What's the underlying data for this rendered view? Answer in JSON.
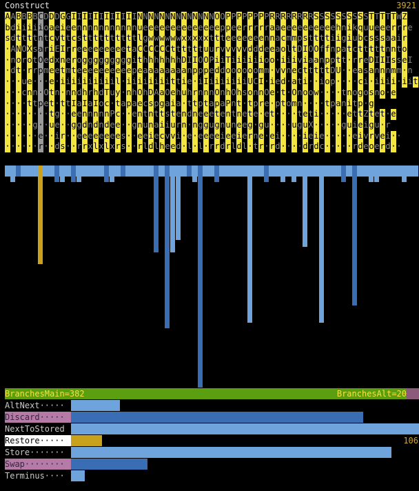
{
  "title": "Construct",
  "total": "3921",
  "grid_rows": [
    "AABBBBCDDDGGIIIIIIIIIIIINNNNNNNNNNNNNNOOPPPPPPPPRRRRRRRRSSSSSSSSSSTTTTTWZ",
    "bdiiiiioaeieennnnnnnnnnnueeeeeeeeeeeeeeppeerrrrraaeeeeeeeeeehnikquueeerrre",
    "sdttttntcvttcsttttttttttlgwwwwwwxxxxxttteeeeeeennacmmpsttttiigiubcsssaair",
    "·ANOXsariEIrreeeeeeeeetaCCCCCCttttttuurvvvvvdddeeaoltDIOOffnpatctttttnnto",
    "·norotOedxnerogggggggggithhhhhhhDIIOOPiiTiiiiiioo·iiiviaanpptt·rreDIIIsseI",
    "·dt·rrpmeetmteeeeeeeeeepeaaaaaaaanpppeddoooooomm·vvnectttttDU··easannnmm·n",
    "···ue···e·iiiiiiiiiil·iiiiiiiittie·iIiiiiiiiUCI·ied·ati··iop····ci·iiii·iit",
    "···cnn·Otn·nndhrhdTuy·nhOhDAaOehuhrnnnOnhOhsonnOe·t·Onoow····tnogosno·e",
    "····ttpet·ttIaIaIoc·tapaecspgaia·ttptapaPnt·tpre·ptomn····tpanitp·g",
    "········tg··eennnnnPc··entnttstendneeetentnete·et····teti·····ettZtet·e",
    "·····g··ue··ggdndndee··gnunaiiurn·nggugnuneeg·gu····uguX·····guieigu·r",
    "······e··ir··eeeeeeees··eeiecvvi·e·eeeeieeierne·ei····ieie·····eivrvei··",
    "······r··ds··rrxlxlxrs··rldlheed·l·l·rrdrldl·tr·rd····drdc·····rdeoerd··"
  ],
  "selected_column": 6,
  "column_bars": [
    {
      "v": 16,
      "c": "light"
    },
    {
      "v": 24,
      "c": "light"
    },
    {
      "v": 16,
      "c": "dark"
    },
    {
      "v": 16,
      "c": "light"
    },
    {
      "v": 16,
      "c": "light"
    },
    {
      "v": 16,
      "c": "light"
    },
    {
      "v": 143,
      "c": "gold"
    },
    {
      "v": 16,
      "c": "light"
    },
    {
      "v": 16,
      "c": "light"
    },
    {
      "v": 24,
      "c": "dark"
    },
    {
      "v": 24,
      "c": "light"
    },
    {
      "v": 16,
      "c": "light"
    },
    {
      "v": 24,
      "c": "dark"
    },
    {
      "v": 24,
      "c": "light"
    },
    {
      "v": 16,
      "c": "light"
    },
    {
      "v": 16,
      "c": "light"
    },
    {
      "v": 16,
      "c": "light"
    },
    {
      "v": 16,
      "c": "light"
    },
    {
      "v": 24,
      "c": "dark"
    },
    {
      "v": 24,
      "c": "light"
    },
    {
      "v": 16,
      "c": "light"
    },
    {
      "v": 16,
      "c": "dark"
    },
    {
      "v": 16,
      "c": "light"
    },
    {
      "v": 16,
      "c": "light"
    },
    {
      "v": 16,
      "c": "light"
    },
    {
      "v": 16,
      "c": "light"
    },
    {
      "v": 16,
      "c": "light"
    },
    {
      "v": 126,
      "c": "dark"
    },
    {
      "v": 16,
      "c": "light"
    },
    {
      "v": 236,
      "c": "dark"
    },
    {
      "v": 126,
      "c": "light"
    },
    {
      "v": 108,
      "c": "light"
    },
    {
      "v": 16,
      "c": "light"
    },
    {
      "v": 16,
      "c": "dark"
    },
    {
      "v": 24,
      "c": "light"
    },
    {
      "v": 322,
      "c": "dark"
    },
    {
      "v": 16,
      "c": "light"
    },
    {
      "v": 16,
      "c": "light"
    },
    {
      "v": 24,
      "c": "dark"
    },
    {
      "v": 16,
      "c": "light"
    },
    {
      "v": 16,
      "c": "light"
    },
    {
      "v": 16,
      "c": "light"
    },
    {
      "v": 16,
      "c": "light"
    },
    {
      "v": 16,
      "c": "light"
    },
    {
      "v": 228,
      "c": "light"
    },
    {
      "v": 16,
      "c": "light"
    },
    {
      "v": 16,
      "c": "light"
    },
    {
      "v": 24,
      "c": "dark"
    },
    {
      "v": 16,
      "c": "light"
    },
    {
      "v": 16,
      "c": "light"
    },
    {
      "v": 24,
      "c": "light"
    },
    {
      "v": 16,
      "c": "light"
    },
    {
      "v": 24,
      "c": "light"
    },
    {
      "v": 16,
      "c": "light"
    },
    {
      "v": 118,
      "c": "light"
    },
    {
      "v": 16,
      "c": "light"
    },
    {
      "v": 16,
      "c": "light"
    },
    {
      "v": 228,
      "c": "light"
    },
    {
      "v": 16,
      "c": "light"
    },
    {
      "v": 16,
      "c": "light"
    },
    {
      "v": 16,
      "c": "light"
    },
    {
      "v": 24,
      "c": "dark"
    },
    {
      "v": 16,
      "c": "light"
    },
    {
      "v": 203,
      "c": "dark"
    },
    {
      "v": 16,
      "c": "light"
    },
    {
      "v": 16,
      "c": "light"
    },
    {
      "v": 24,
      "c": "light"
    },
    {
      "v": 24,
      "c": "light"
    },
    {
      "v": 16,
      "c": "light"
    },
    {
      "v": 16,
      "c": "light"
    },
    {
      "v": 16,
      "c": "light"
    },
    {
      "v": 16,
      "c": "light"
    },
    {
      "v": 24,
      "c": "light"
    },
    {
      "v": 16,
      "c": "light"
    },
    {
      "v": 16,
      "c": "light"
    }
  ],
  "banner": {
    "left": "BranchesMain=382",
    "right": "BranchesAlt=20"
  },
  "stats": [
    {
      "label": "AltNext·····",
      "value": 14,
      "style": "plain",
      "color": "light",
      "shown": ""
    },
    {
      "label": "Discard·····",
      "value": 84,
      "style": "pink",
      "color": "dark",
      "shown": ""
    },
    {
      "label": "NextToStored",
      "value": 100,
      "style": "plain",
      "color": "light",
      "shown": ""
    },
    {
      "label": "Restore·····",
      "value": 9,
      "style": "white",
      "color": "gold",
      "shown": "106"
    },
    {
      "label": "Store·······",
      "value": 92,
      "style": "plain",
      "color": "light",
      "shown": ""
    },
    {
      "label": "Swap········",
      "value": 22,
      "style": "pink",
      "color": "dark",
      "shown": ""
    },
    {
      "label": "Terminus····",
      "value": 4,
      "style": "plain",
      "color": "light",
      "shown": ""
    }
  ],
  "colors": {
    "light": "#6fa3dc",
    "dark": "#3a6eb4",
    "gold": "#c8a21c",
    "yellow": "#f2e540",
    "green": "#5b9e10"
  }
}
